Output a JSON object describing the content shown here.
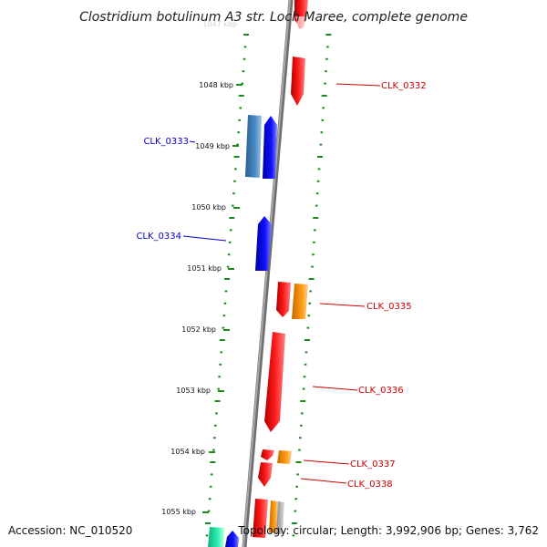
{
  "title": "Clostridium botulinum A3 str. Loch Maree, complete genome",
  "footer": {
    "accession": "Accession: NC_010520",
    "summary": "Topology: circular; Length: 3,992,906 bp; Genes: 3,762"
  },
  "colors": {
    "backbone": "#8a8a8a",
    "tick": "#1a8a1a",
    "forward_gene": "#ff0000",
    "reverse_gene": "#0000ff",
    "steelblue_gene": "#3f7fb5",
    "orange_gene": "#ff8c00",
    "teal_gene": "#20e0a0",
    "gray_gene": "#aaaaaa"
  },
  "kbp_labels": [
    "1048 kbp",
    "1049 kbp",
    "1050 kbp",
    "1051 kbp",
    "1052 kbp",
    "1053 kbp",
    "1054 kbp",
    "1055 kbp"
  ],
  "gene_labels": [
    {
      "text": "CLK_0332",
      "color": "#cc0000"
    },
    {
      "text": "CLK_0333",
      "color": "#0000cc"
    },
    {
      "text": "CLK_0334",
      "color": "#0000cc"
    },
    {
      "text": "CLK_0335",
      "color": "#cc0000"
    },
    {
      "text": "CLK_0336",
      "color": "#cc0000"
    },
    {
      "text": "CLK_0337",
      "color": "#cc0000"
    },
    {
      "text": "CLK_0338",
      "color": "#cc0000"
    }
  ]
}
